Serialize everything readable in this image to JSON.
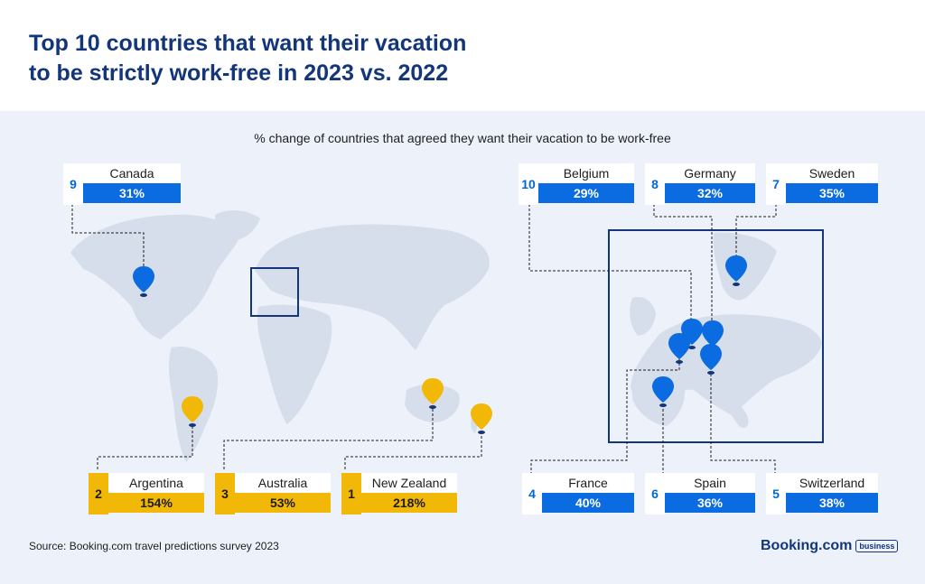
{
  "title": "Top 10 countries that want their vacation to be strictly work-free in 2023 vs. 2022",
  "subtitle": "% change of countries that agreed they want their vacation to be work-free",
  "source": "Source: Booking.com travel predictions survey 2023",
  "logo": {
    "brand": "Booking.com",
    "tag": "business"
  },
  "colors": {
    "title": "#13357a",
    "blue": "#0b6be0",
    "yellow": "#f2b807",
    "land": "#d6deec",
    "panel": "#edf2fa"
  },
  "chart_data": {
    "type": "table",
    "title": "Top 10 countries that want their vacation to be strictly work-free in 2023 vs. 2022",
    "subtitle": "% change of countries that agreed they want their vacation to be work-free",
    "columns": [
      "Rank",
      "Country",
      "% change"
    ],
    "rows": [
      {
        "rank": "1",
        "country": "New Zealand",
        "value": "218%",
        "group": "yellow"
      },
      {
        "rank": "2",
        "country": "Argentina",
        "value": "154%",
        "group": "yellow"
      },
      {
        "rank": "3",
        "country": "Australia",
        "value": "53%",
        "group": "yellow"
      },
      {
        "rank": "4",
        "country": "France",
        "value": "40%",
        "group": "blue"
      },
      {
        "rank": "5",
        "country": "Switzerland",
        "value": "38%",
        "group": "blue"
      },
      {
        "rank": "6",
        "country": "Spain",
        "value": "36%",
        "group": "blue"
      },
      {
        "rank": "7",
        "country": "Sweden",
        "value": "35%",
        "group": "blue"
      },
      {
        "rank": "8",
        "country": "Germany",
        "value": "32%",
        "group": "blue"
      },
      {
        "rank": "9",
        "country": "Canada",
        "value": "31%",
        "group": "blue"
      },
      {
        "rank": "10",
        "country": "Belgium",
        "value": "29%",
        "group": "blue"
      }
    ]
  }
}
